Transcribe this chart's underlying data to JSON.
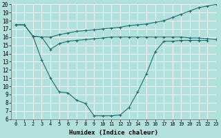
{
  "xlabel": "Humidex (Indice chaleur)",
  "xlim": [
    -0.5,
    23
  ],
  "ylim": [
    6,
    20
  ],
  "xticks": [
    0,
    1,
    2,
    3,
    4,
    5,
    6,
    7,
    8,
    9,
    10,
    11,
    12,
    13,
    14,
    15,
    16,
    17,
    18,
    19,
    20,
    21,
    22,
    23
  ],
  "yticks": [
    6,
    7,
    8,
    9,
    10,
    11,
    12,
    13,
    14,
    15,
    16,
    17,
    18,
    19,
    20
  ],
  "bg_color": "#b2e0dc",
  "line_color": "#1a6b6b",
  "grid_color": "#ffffff",
  "line1_x": [
    0,
    1,
    2,
    3,
    4,
    5,
    6,
    7,
    8,
    9,
    10,
    11,
    12,
    13,
    14,
    15,
    16,
    17,
    18,
    19,
    20,
    21,
    22,
    23
  ],
  "line1_y": [
    17.5,
    17.5,
    16.1,
    16.0,
    16.0,
    16.3,
    16.5,
    16.7,
    16.8,
    16.9,
    17.0,
    17.1,
    17.2,
    17.4,
    17.5,
    17.6,
    17.8,
    18.0,
    18.4,
    18.8,
    19.2,
    19.6,
    19.8,
    20.0
  ],
  "line2_x": [
    0,
    1,
    2,
    3,
    4,
    5,
    6,
    7,
    8,
    9,
    10,
    11,
    12,
    13,
    14,
    15,
    16,
    17,
    18,
    19,
    20,
    21,
    22
  ],
  "line2_y": [
    17.5,
    17.5,
    16.1,
    13.2,
    11.0,
    9.3,
    9.2,
    8.3,
    7.9,
    6.4,
    6.4,
    6.4,
    6.5,
    7.4,
    9.3,
    11.5,
    14.2,
    15.5,
    15.5,
    15.6,
    15.6,
    15.6,
    15.6
  ],
  "line3_x": [
    2,
    3,
    4,
    5,
    6,
    7,
    8,
    9,
    10,
    11,
    12,
    13,
    14,
    15,
    16,
    17,
    18,
    19,
    20,
    21,
    22,
    23
  ],
  "line3_y": [
    16.1,
    16.0,
    14.5,
    15.2,
    15.5,
    15.6,
    15.7,
    15.8,
    15.9,
    16.0,
    16.0,
    16.0,
    16.0,
    16.0,
    16.0,
    16.0,
    16.0,
    16.0,
    15.9,
    15.9,
    15.8,
    15.7
  ]
}
